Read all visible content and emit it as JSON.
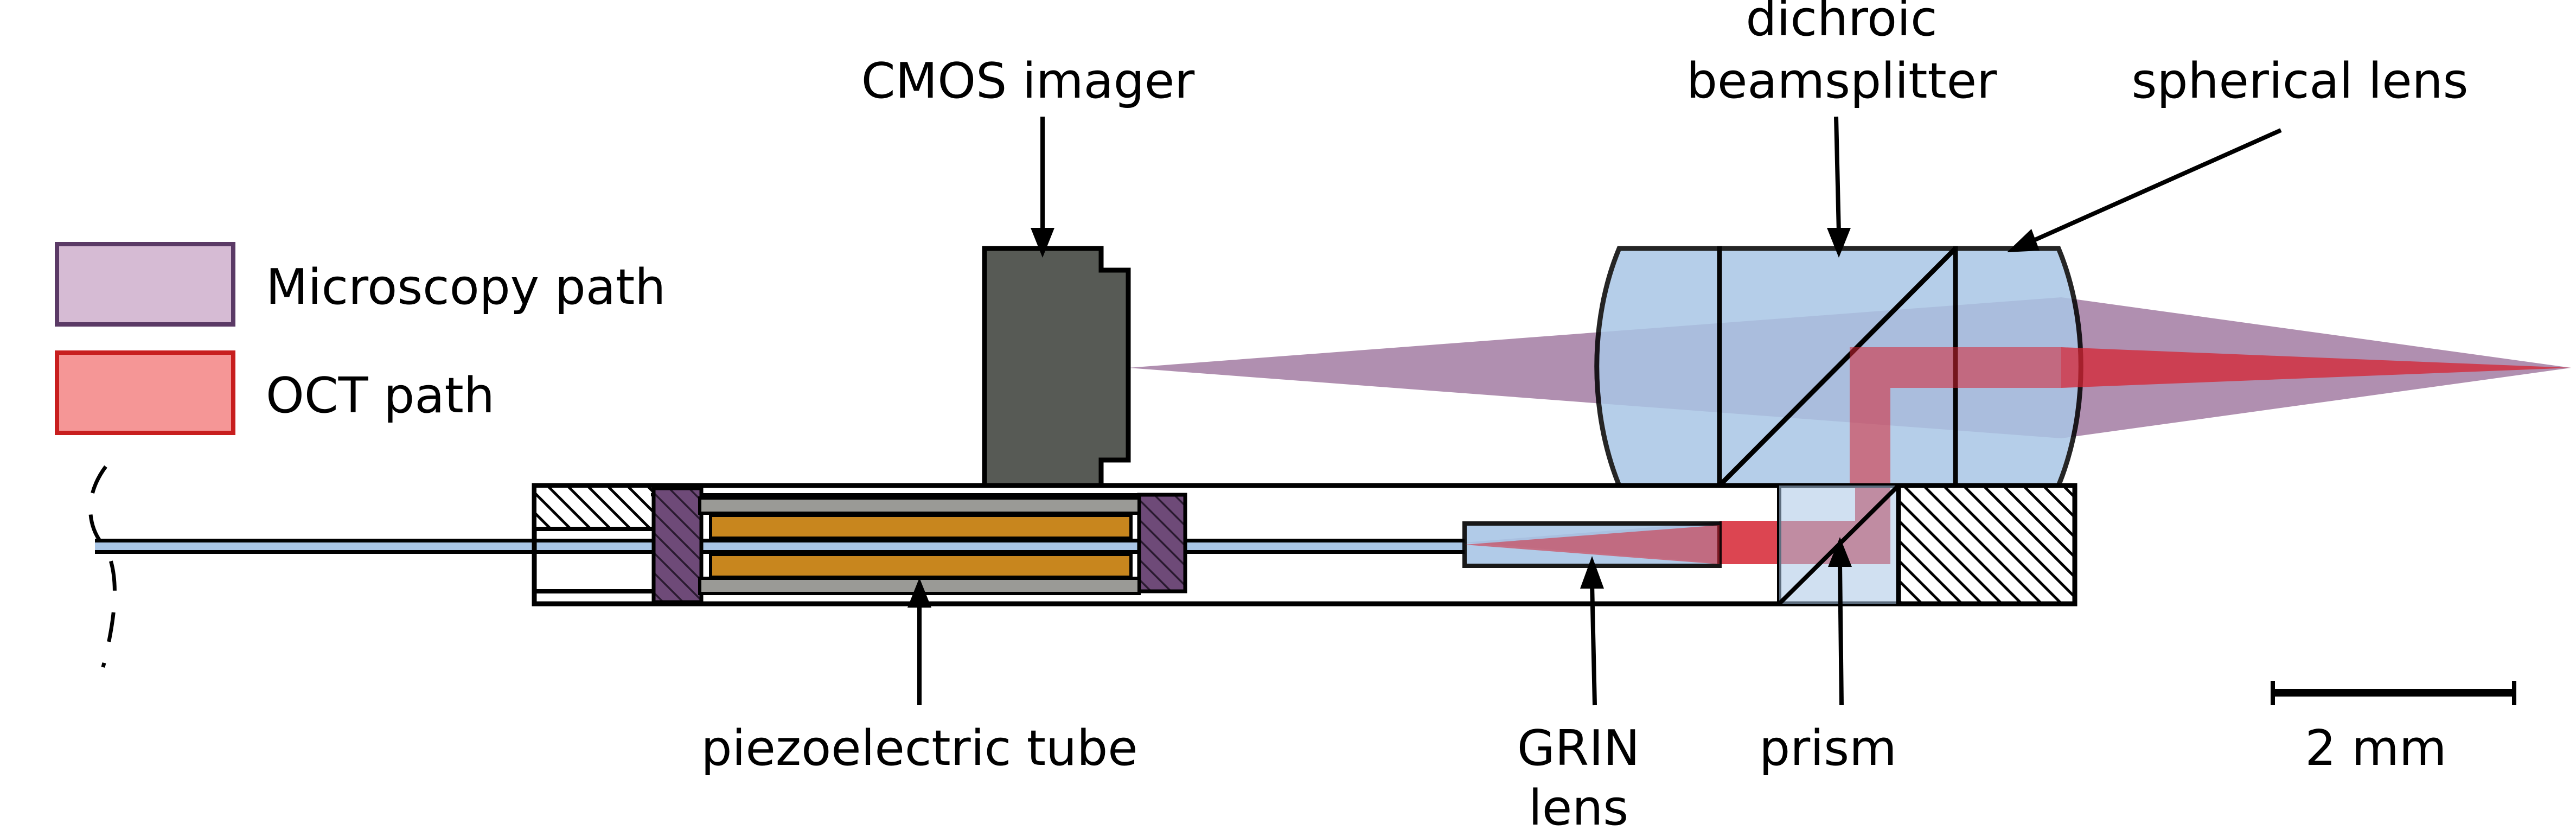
{
  "legend": {
    "microscopy": {
      "label": "Microscopy path",
      "color": "#d6bbd4",
      "border": "#5b3a66"
    },
    "oct": {
      "label": "OCT path",
      "color": "#f59696",
      "border": "#c81e1e"
    }
  },
  "labels": {
    "cmos": "CMOS imager",
    "dichroic_line1": "dichroic",
    "dichroic_line2": "beamsplitter",
    "spherical": "spherical lens",
    "piezo": "piezoelectric tube",
    "grin_line1": "GRIN",
    "grin_line2": "lens",
    "prism": "prism",
    "scale": "2 mm"
  },
  "colors": {
    "cmos_body": "#575a55",
    "glass": "#a9c6e6",
    "microscopy_beam": "#8a5a8a",
    "oct_beam": "#d62433",
    "piezo_core": "#c8861e",
    "piezo_electrode": "#9a9a96",
    "piezo_mount": "#6e4a78"
  }
}
